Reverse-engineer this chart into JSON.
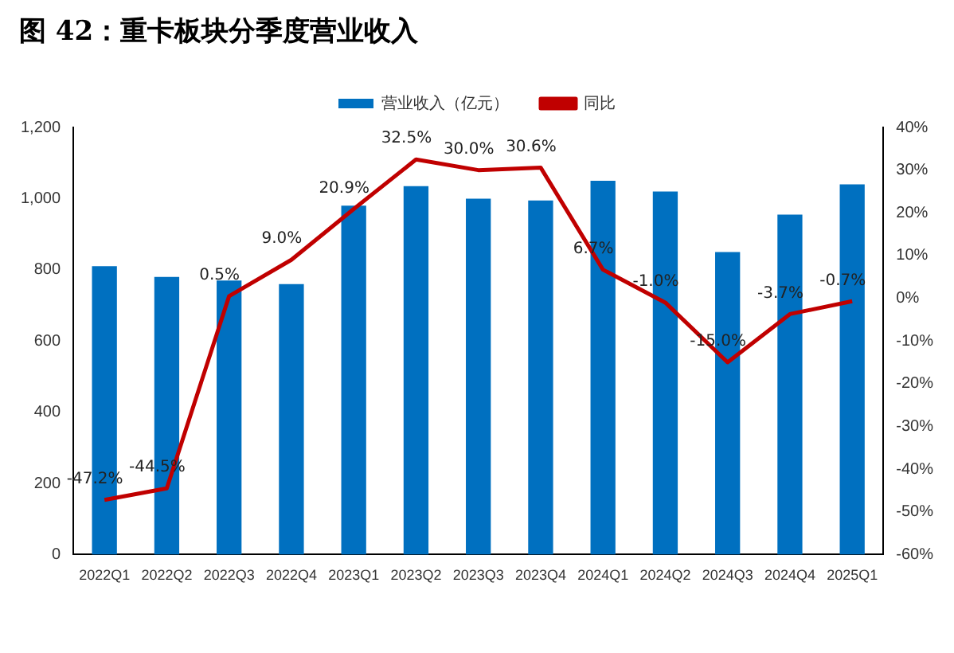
{
  "chart_data": {
    "type": "bar",
    "title": "图 42：重卡板块分季度营业收入",
    "categories": [
      "2022Q1",
      "2022Q2",
      "2022Q3",
      "2022Q4",
      "2023Q1",
      "2023Q2",
      "2023Q3",
      "2023Q4",
      "2024Q1",
      "2024Q2",
      "2024Q3",
      "2024Q4",
      "2025Q1"
    ],
    "series": [
      {
        "name": "营业收入（亿元）",
        "color": "#0070c0",
        "values": [
          810,
          780,
          770,
          760,
          980,
          1035,
          1000,
          995,
          1050,
          1020,
          850,
          955,
          1040
        ]
      },
      {
        "name": "同比",
        "type": "line",
        "axis": "y2",
        "color": "#c00000",
        "values": [
          -47.2,
          -44.5,
          0.5,
          9.0,
          20.9,
          32.5,
          30.0,
          30.6,
          6.7,
          -1.0,
          -15.0,
          -3.7,
          -0.7
        ],
        "value_labels": [
          "-47.2%",
          "-44.5%",
          "0.5%",
          "9.0%",
          "20.9%",
          "32.5%",
          "30.0%",
          "30.6%",
          "6.7%",
          "-1.0%",
          "-15.0%",
          "-3.7%",
          "-0.7%"
        ]
      }
    ],
    "ylim": [
      0,
      1200
    ],
    "yticks": [
      0,
      200,
      400,
      600,
      800,
      {
        "value": 1000,
        "label": "1,000"
      },
      {
        "value": 1200,
        "label": "1,200"
      }
    ],
    "y2lim": [
      -60,
      40
    ],
    "y2ticks": [
      {
        "value": -60,
        "label": "-60%"
      },
      {
        "value": -50,
        "label": "-50%"
      },
      {
        "value": -40,
        "label": "-40%"
      },
      {
        "value": -30,
        "label": "-30%"
      },
      {
        "value": -20,
        "label": "-20%"
      },
      {
        "value": -10,
        "label": "-10%"
      },
      {
        "value": 0,
        "label": "0%"
      },
      {
        "value": 10,
        "label": "10%"
      },
      {
        "value": 20,
        "label": "20%"
      },
      {
        "value": 30,
        "label": "30%"
      },
      {
        "value": 40,
        "label": "40%"
      }
    ],
    "grid": false,
    "legend": "top",
    "marker": "none"
  }
}
